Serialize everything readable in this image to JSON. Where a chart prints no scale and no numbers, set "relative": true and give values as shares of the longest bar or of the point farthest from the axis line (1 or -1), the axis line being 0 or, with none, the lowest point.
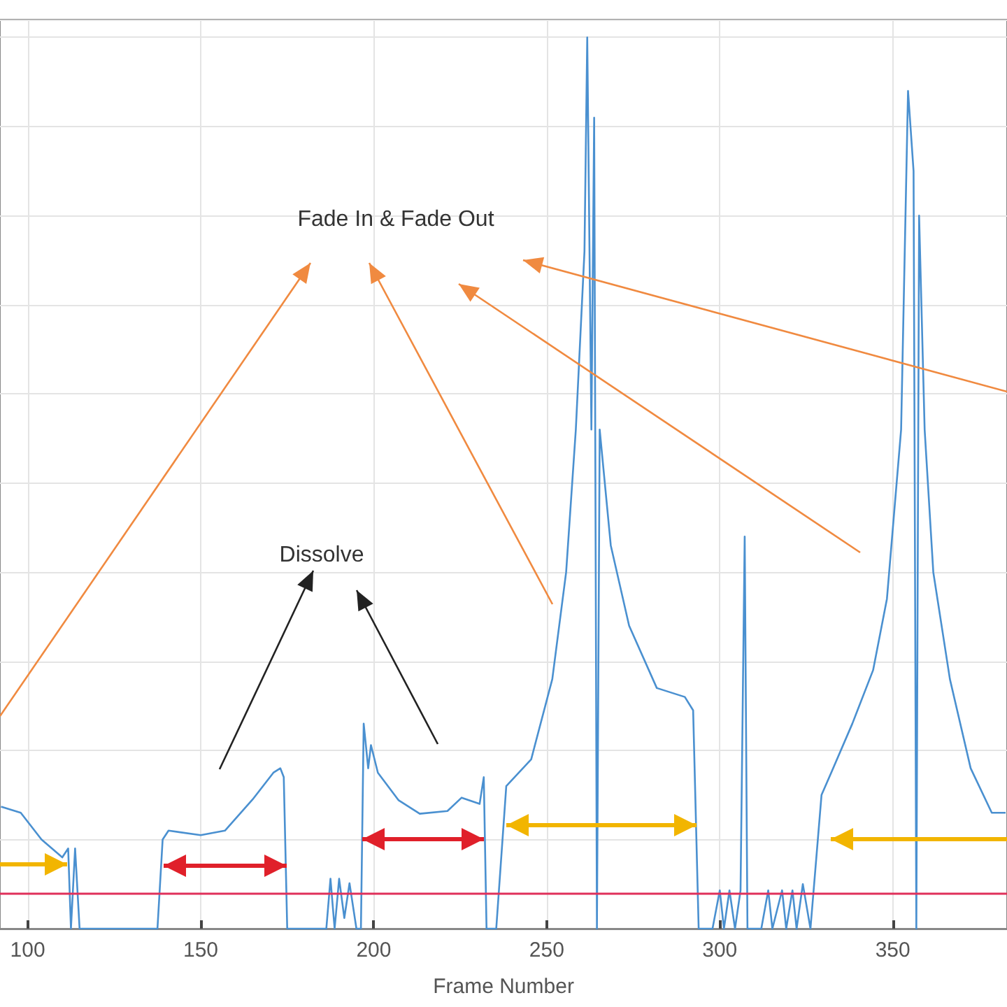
{
  "chart_data": {
    "type": "line",
    "relative": true,
    "xlabel": "Frame Number",
    "xlim": [
      92,
      383
    ],
    "xticks": [
      100,
      150,
      200,
      250,
      300,
      350
    ],
    "grid": true,
    "marker": "none",
    "line_style": "solid",
    "annotations": [
      "Fade In & Fade Out",
      "Dissolve"
    ],
    "ref_lines": [
      {
        "axis": "y",
        "value": 0.043,
        "color": "#e0305a"
      }
    ],
    "series": [
      {
        "color": "#4a90d0",
        "x": [
          92.3,
          98,
          104,
          110,
          111.7,
          112.5,
          113.7,
          115,
          137.5,
          139,
          140.7,
          150,
          157,
          165,
          171,
          173,
          174,
          175,
          186.3,
          187.5,
          188.7,
          190,
          191.5,
          193,
          195,
          196.3,
          197.1,
          198.4,
          199.2,
          201.2,
          207.2,
          213.3,
          221.3,
          225.4,
          230.6,
          231.8,
          232.6,
          235.4,
          238.3,
          245.5,
          251.6,
          255.6,
          258.4,
          260.9,
          261.7,
          262.9,
          263.7,
          264.5,
          265.3,
          268.5,
          273.8,
          281.8,
          289.9,
          292.3,
          293.9,
          297.9,
          300,
          301.2,
          302.8,
          304.4,
          306,
          307.2,
          308,
          312,
          314,
          315.2,
          318,
          319.2,
          321,
          322.2,
          324,
          326.2,
          329.4,
          332.2,
          338.3,
          344.3,
          348.3,
          352.4,
          354.4,
          356,
          356.8,
          357.6,
          359.2,
          361.7,
          366.5,
          372.5,
          378.6,
          382.6
        ],
        "values": [
          0.137,
          0.13,
          0.1,
          0.08,
          0.09,
          0,
          0.09,
          0,
          0,
          0.1,
          0.11,
          0.105,
          0.11,
          0.145,
          0.175,
          0.18,
          0.17,
          0,
          0,
          0.056,
          0,
          0.056,
          0.012,
          0.051,
          0,
          0,
          0.23,
          0.18,
          0.206,
          0.175,
          0.144,
          0.129,
          0.132,
          0.147,
          0.14,
          0.17,
          0,
          0,
          0.16,
          0.19,
          0.28,
          0.4,
          0.56,
          0.76,
          1.0,
          0.56,
          0.91,
          0,
          0.56,
          0.43,
          0.34,
          0.27,
          0.26,
          0.245,
          0,
          0,
          0.043,
          0,
          0.043,
          0,
          0.043,
          0.44,
          0,
          0,
          0.043,
          0,
          0.043,
          0,
          0.043,
          0,
          0.05,
          0,
          0.15,
          0.175,
          0.23,
          0.29,
          0.37,
          0.56,
          0.94,
          0.85,
          0,
          0.8,
          0.56,
          0.4,
          0.28,
          0.18,
          0.13,
          0.13
        ]
      }
    ]
  }
}
